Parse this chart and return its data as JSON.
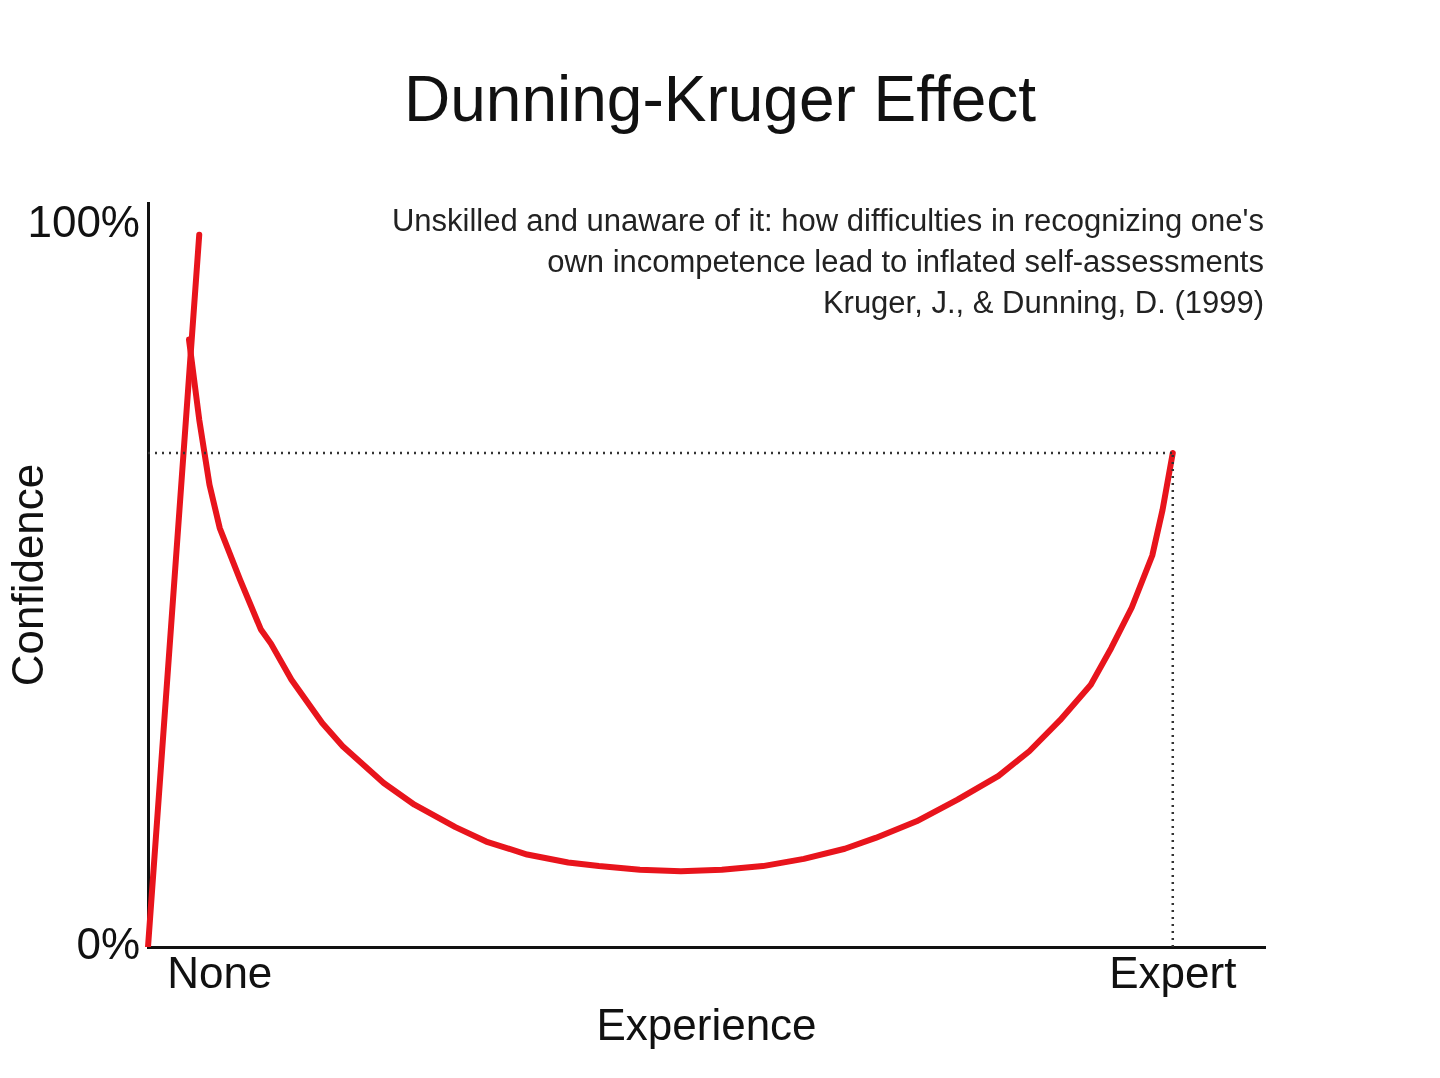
{
  "chart_data": {
    "type": "line",
    "title": "Dunning-Kruger Effect",
    "subtitle": "Unskilled and unaware of it: how difficulties in recognizing one's own incompetence lead to inflated self-assessments",
    "annotations": [
      "Kruger, J., & Dunning, D. (1999)"
    ],
    "ylabel": "Confidence",
    "xlabel": "Experience",
    "categories": [
      null,
      null,
      null,
      null,
      null,
      null,
      null,
      "None",
      null,
      null,
      null,
      null,
      null,
      null,
      null,
      null,
      null,
      null,
      null,
      null,
      null,
      null,
      null,
      null,
      null,
      null,
      null,
      null,
      null,
      null,
      null,
      null,
      null,
      null,
      null,
      null,
      null,
      null,
      null,
      null,
      null,
      null,
      null,
      null,
      null,
      null,
      null,
      null,
      null,
      null,
      null,
      null,
      null,
      null,
      null,
      null,
      null,
      null,
      null,
      null,
      null,
      null,
      null,
      null,
      null,
      null,
      null,
      null,
      null,
      null,
      null,
      null,
      null,
      null,
      null,
      null,
      null,
      null,
      null,
      null,
      null,
      null,
      null,
      null,
      null,
      null,
      null,
      null,
      null,
      null,
      null,
      null,
      null,
      null,
      null,
      null,
      null,
      null,
      null,
      null,
      "Expert",
      null,
      null,
      null,
      null,
      null,
      null,
      null,
      null,
      null
    ],
    "ylim": [
      0,
      103
    ],
    "yticks": [
      {
        "value": 0,
        "label": "0%"
      },
      {
        "value": 100,
        "label": "100%"
      }
    ],
    "series": [
      {
        "color": "#e8141c",
        "values": [
          0,
          null,
          null,
          null,
          null,
          98.6,
          null,
          null,
          null,
          null,
          null,
          null,
          null,
          null,
          null,
          null,
          null,
          null,
          null,
          null,
          null,
          null,
          null,
          null,
          null,
          null,
          null,
          null,
          null,
          null,
          null,
          null,
          null,
          null,
          null,
          null,
          null,
          null,
          null,
          null,
          null,
          null,
          null,
          null,
          null,
          null,
          null,
          null,
          null,
          null,
          null,
          null,
          null,
          null,
          null,
          null,
          null,
          null,
          null,
          null,
          null,
          null,
          null,
          null,
          null,
          null,
          null,
          null,
          null,
          null,
          null,
          null,
          null,
          null,
          null,
          null,
          null,
          null,
          null,
          null,
          null,
          null,
          null,
          null,
          null,
          null,
          null,
          null,
          null,
          null,
          null,
          null,
          null,
          null,
          null,
          null,
          null,
          null,
          null,
          null,
          null,
          null,
          null,
          null,
          null,
          null,
          null,
          null,
          null,
          null
        ]
      },
      {
        "color": "#e8141c",
        "values": [
          null,
          null,
          null,
          null,
          84.1,
          73,
          64,
          58,
          null,
          50.8,
          null,
          44,
          42,
          null,
          37,
          null,
          null,
          31,
          null,
          27.8,
          null,
          null,
          null,
          22.7,
          null,
          null,
          19.7,
          null,
          null,
          null,
          16.6,
          null,
          null,
          14.6,
          null,
          null,
          null,
          12.8,
          null,
          null,
          null,
          11.7,
          null,
          null,
          11.2,
          null,
          null,
          null,
          10.7,
          null,
          null,
          null,
          10.5,
          null,
          null,
          null,
          10.7,
          null,
          null,
          null,
          11.2,
          null,
          null,
          null,
          12.2,
          null,
          null,
          null,
          13.6,
          null,
          null,
          15.1,
          null,
          null,
          null,
          17.4,
          null,
          null,
          null,
          20.4,
          null,
          null,
          null,
          23.7,
          null,
          null,
          27.1,
          null,
          null,
          31.4,
          null,
          null,
          36.3,
          null,
          41.4,
          null,
          47,
          null,
          54.2,
          60.5,
          68.4,
          null,
          null,
          null,
          null,
          null,
          null,
          null,
          null,
          null
        ]
      }
    ],
    "ref_lines": [
      {
        "axis": "y",
        "value": 68.4,
        "color": "#333333",
        "line_style": "dotted"
      },
      {
        "axis": "x",
        "value": "Expert",
        "color": "#333333",
        "line_style": "dotted"
      }
    ],
    "grid": false,
    "legend": false,
    "marker": "none",
    "line_style": "solid"
  }
}
